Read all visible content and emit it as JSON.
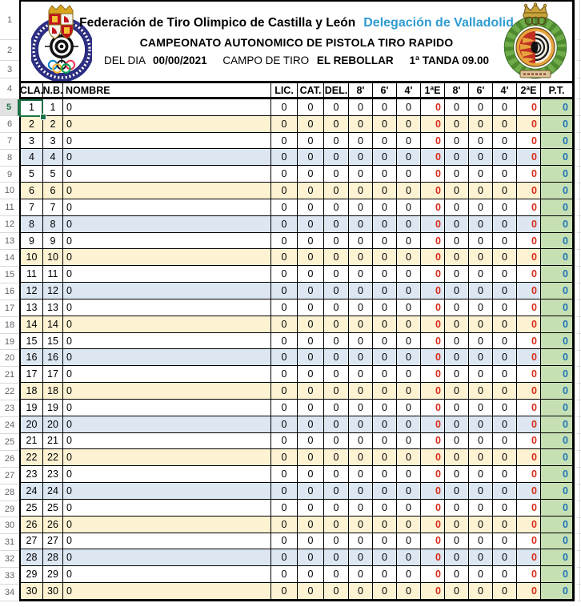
{
  "header": {
    "federation_title": "Federación de Tiro Olimpico de Castilla y León",
    "delegation": "Delegación de Valladolid",
    "championship": "CAMPEONATO AUTONOMICO DE PISTOLA TIRO RAPIDO",
    "line3": {
      "day_label": "DEL DIA",
      "date": "00/00/2021",
      "range_label": "CAMPO DE TIRO",
      "range_name": "EL REBOLLAR",
      "round": "1ª TANDA 09.00"
    }
  },
  "table": {
    "columns": [
      "CLA.",
      "N.B.",
      "NOMBRE",
      "LIC.",
      "CAT.",
      "DEL.",
      "8'",
      "6'",
      "4'",
      "1ªE",
      "8'",
      "6'",
      "4'",
      "2ªE",
      "P.T."
    ],
    "rows": [
      [
        "1",
        "1",
        "0",
        "0",
        "0",
        "0",
        "0",
        "0",
        "0",
        "0",
        "0",
        "0",
        "0",
        "0",
        "0"
      ],
      [
        "2",
        "2",
        "0",
        "0",
        "0",
        "0",
        "0",
        "0",
        "0",
        "0",
        "0",
        "0",
        "0",
        "0",
        "0"
      ],
      [
        "3",
        "3",
        "0",
        "0",
        "0",
        "0",
        "0",
        "0",
        "0",
        "0",
        "0",
        "0",
        "0",
        "0",
        "0"
      ],
      [
        "4",
        "4",
        "0",
        "0",
        "0",
        "0",
        "0",
        "0",
        "0",
        "0",
        "0",
        "0",
        "0",
        "0",
        "0"
      ],
      [
        "5",
        "5",
        "0",
        "0",
        "0",
        "0",
        "0",
        "0",
        "0",
        "0",
        "0",
        "0",
        "0",
        "0",
        "0"
      ],
      [
        "6",
        "6",
        "0",
        "0",
        "0",
        "0",
        "0",
        "0",
        "0",
        "0",
        "0",
        "0",
        "0",
        "0",
        "0"
      ],
      [
        "7",
        "7",
        "0",
        "0",
        "0",
        "0",
        "0",
        "0",
        "0",
        "0",
        "0",
        "0",
        "0",
        "0",
        "0"
      ],
      [
        "8",
        "8",
        "0",
        "0",
        "0",
        "0",
        "0",
        "0",
        "0",
        "0",
        "0",
        "0",
        "0",
        "0",
        "0"
      ],
      [
        "9",
        "9",
        "0",
        "0",
        "0",
        "0",
        "0",
        "0",
        "0",
        "0",
        "0",
        "0",
        "0",
        "0",
        "0"
      ],
      [
        "10",
        "10",
        "0",
        "0",
        "0",
        "0",
        "0",
        "0",
        "0",
        "0",
        "0",
        "0",
        "0",
        "0",
        "0"
      ],
      [
        "11",
        "11",
        "0",
        "0",
        "0",
        "0",
        "0",
        "0",
        "0",
        "0",
        "0",
        "0",
        "0",
        "0",
        "0"
      ],
      [
        "12",
        "12",
        "0",
        "0",
        "0",
        "0",
        "0",
        "0",
        "0",
        "0",
        "0",
        "0",
        "0",
        "0",
        "0"
      ],
      [
        "13",
        "13",
        "0",
        "0",
        "0",
        "0",
        "0",
        "0",
        "0",
        "0",
        "0",
        "0",
        "0",
        "0",
        "0"
      ],
      [
        "14",
        "14",
        "0",
        "0",
        "0",
        "0",
        "0",
        "0",
        "0",
        "0",
        "0",
        "0",
        "0",
        "0",
        "0"
      ],
      [
        "15",
        "15",
        "0",
        "0",
        "0",
        "0",
        "0",
        "0",
        "0",
        "0",
        "0",
        "0",
        "0",
        "0",
        "0"
      ],
      [
        "16",
        "16",
        "0",
        "0",
        "0",
        "0",
        "0",
        "0",
        "0",
        "0",
        "0",
        "0",
        "0",
        "0",
        "0"
      ],
      [
        "17",
        "17",
        "0",
        "0",
        "0",
        "0",
        "0",
        "0",
        "0",
        "0",
        "0",
        "0",
        "0",
        "0",
        "0"
      ],
      [
        "18",
        "18",
        "0",
        "0",
        "0",
        "0",
        "0",
        "0",
        "0",
        "0",
        "0",
        "0",
        "0",
        "0",
        "0"
      ],
      [
        "19",
        "19",
        "0",
        "0",
        "0",
        "0",
        "0",
        "0",
        "0",
        "0",
        "0",
        "0",
        "0",
        "0",
        "0"
      ],
      [
        "20",
        "20",
        "0",
        "0",
        "0",
        "0",
        "0",
        "0",
        "0",
        "0",
        "0",
        "0",
        "0",
        "0",
        "0"
      ],
      [
        "21",
        "21",
        "0",
        "0",
        "0",
        "0",
        "0",
        "0",
        "0",
        "0",
        "0",
        "0",
        "0",
        "0",
        "0"
      ],
      [
        "22",
        "22",
        "0",
        "0",
        "0",
        "0",
        "0",
        "0",
        "0",
        "0",
        "0",
        "0",
        "0",
        "0",
        "0"
      ],
      [
        "23",
        "23",
        "0",
        "0",
        "0",
        "0",
        "0",
        "0",
        "0",
        "0",
        "0",
        "0",
        "0",
        "0",
        "0"
      ],
      [
        "24",
        "24",
        "0",
        "0",
        "0",
        "0",
        "0",
        "0",
        "0",
        "0",
        "0",
        "0",
        "0",
        "0",
        "0"
      ],
      [
        "25",
        "25",
        "0",
        "0",
        "0",
        "0",
        "0",
        "0",
        "0",
        "0",
        "0",
        "0",
        "0",
        "0",
        "0"
      ],
      [
        "26",
        "26",
        "0",
        "0",
        "0",
        "0",
        "0",
        "0",
        "0",
        "0",
        "0",
        "0",
        "0",
        "0",
        "0"
      ],
      [
        "27",
        "27",
        "0",
        "0",
        "0",
        "0",
        "0",
        "0",
        "0",
        "0",
        "0",
        "0",
        "0",
        "0",
        "0"
      ],
      [
        "28",
        "28",
        "0",
        "0",
        "0",
        "0",
        "0",
        "0",
        "0",
        "0",
        "0",
        "0",
        "0",
        "0",
        "0"
      ],
      [
        "29",
        "29",
        "0",
        "0",
        "0",
        "0",
        "0",
        "0",
        "0",
        "0",
        "0",
        "0",
        "0",
        "0",
        "0"
      ],
      [
        "30",
        "30",
        "0",
        "0",
        "0",
        "0",
        "0",
        "0",
        "0",
        "0",
        "0",
        "0",
        "0",
        "0",
        "0"
      ]
    ]
  },
  "excel": {
    "row_numbers": [
      1,
      2,
      3,
      4,
      5,
      6,
      7,
      8,
      9,
      10,
      11,
      12,
      13,
      14,
      15,
      16,
      17,
      18,
      19,
      20,
      21,
      22,
      23,
      24,
      25,
      26,
      27,
      28,
      29,
      30,
      31,
      32,
      33,
      34
    ],
    "selected_row": 5
  },
  "colors": {
    "stripe_yellow": "#FDF3D3",
    "stripe_blue": "#DCE7F2",
    "pt_green": "#C6E0B4",
    "red_text": "#D92B1B",
    "blue_text": "#1F72B4",
    "delegation_blue": "#2E9BD1",
    "selection_green": "#1E7145"
  }
}
